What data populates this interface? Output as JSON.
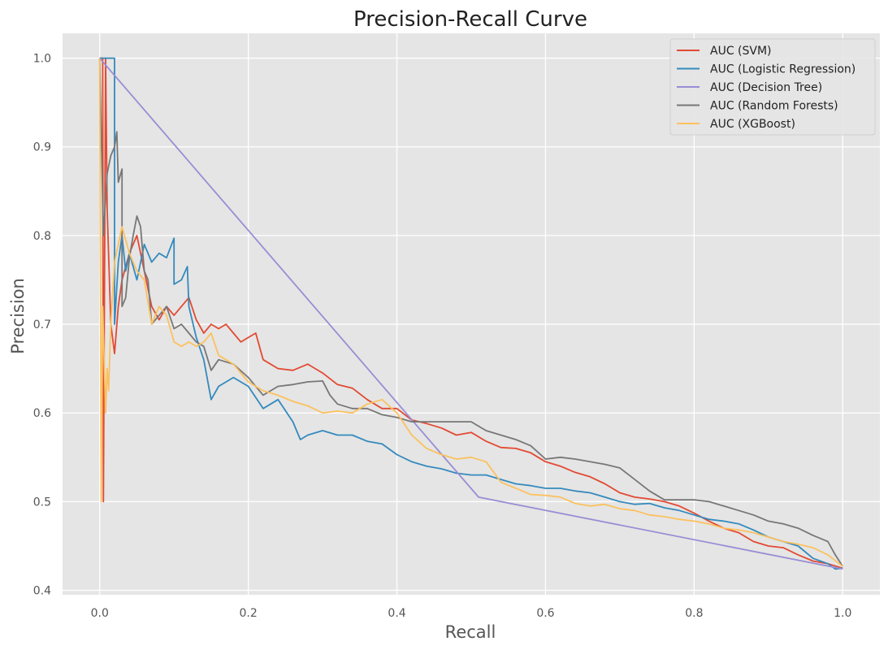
{
  "chart_data": {
    "type": "line",
    "title": "Precision-Recall Curve",
    "xlabel": "Recall",
    "ylabel": "Precision",
    "xlim": [
      -0.05,
      1.05
    ],
    "ylim": [
      0.395,
      1.028
    ],
    "xticks": [
      "0.0",
      "0.2",
      "0.4",
      "0.6",
      "0.8",
      "1.0"
    ],
    "yticks": [
      "0.4",
      "0.5",
      "0.6",
      "0.7",
      "0.8",
      "0.9",
      "1.0"
    ],
    "grid": true,
    "legend_position": "top-right",
    "series": [
      {
        "name": "AUC (SVM)",
        "color": "#E24A33",
        "points": [
          [
            0.0,
            1.0
          ],
          [
            0.004,
            1.0
          ],
          [
            0.005,
            0.5
          ],
          [
            0.008,
            1.0
          ],
          [
            0.01,
            0.83
          ],
          [
            0.015,
            0.7
          ],
          [
            0.02,
            0.667
          ],
          [
            0.025,
            0.72
          ],
          [
            0.03,
            0.75
          ],
          [
            0.04,
            0.78
          ],
          [
            0.05,
            0.8
          ],
          [
            0.06,
            0.76
          ],
          [
            0.07,
            0.72
          ],
          [
            0.08,
            0.705
          ],
          [
            0.09,
            0.72
          ],
          [
            0.1,
            0.71
          ],
          [
            0.11,
            0.72
          ],
          [
            0.12,
            0.73
          ],
          [
            0.13,
            0.705
          ],
          [
            0.14,
            0.69
          ],
          [
            0.15,
            0.7
          ],
          [
            0.16,
            0.695
          ],
          [
            0.17,
            0.7
          ],
          [
            0.18,
            0.69
          ],
          [
            0.19,
            0.68
          ],
          [
            0.2,
            0.685
          ],
          [
            0.21,
            0.69
          ],
          [
            0.22,
            0.66
          ],
          [
            0.24,
            0.65
          ],
          [
            0.26,
            0.648
          ],
          [
            0.28,
            0.655
          ],
          [
            0.3,
            0.645
          ],
          [
            0.32,
            0.632
          ],
          [
            0.34,
            0.628
          ],
          [
            0.36,
            0.615
          ],
          [
            0.38,
            0.605
          ],
          [
            0.4,
            0.605
          ],
          [
            0.42,
            0.592
          ],
          [
            0.44,
            0.588
          ],
          [
            0.46,
            0.583
          ],
          [
            0.48,
            0.575
          ],
          [
            0.5,
            0.578
          ],
          [
            0.52,
            0.568
          ],
          [
            0.54,
            0.561
          ],
          [
            0.56,
            0.56
          ],
          [
            0.58,
            0.555
          ],
          [
            0.6,
            0.545
          ],
          [
            0.62,
            0.54
          ],
          [
            0.64,
            0.533
          ],
          [
            0.66,
            0.528
          ],
          [
            0.68,
            0.52
          ],
          [
            0.7,
            0.51
          ],
          [
            0.72,
            0.505
          ],
          [
            0.74,
            0.503
          ],
          [
            0.76,
            0.5
          ],
          [
            0.78,
            0.495
          ],
          [
            0.8,
            0.487
          ],
          [
            0.82,
            0.478
          ],
          [
            0.84,
            0.47
          ],
          [
            0.86,
            0.465
          ],
          [
            0.88,
            0.455
          ],
          [
            0.9,
            0.45
          ],
          [
            0.92,
            0.448
          ],
          [
            0.94,
            0.44
          ],
          [
            0.96,
            0.433
          ],
          [
            0.98,
            0.43
          ],
          [
            1.0,
            0.425
          ]
        ]
      },
      {
        "name": "AUC (Logistic Regression)",
        "color": "#348ABD",
        "points": [
          [
            0.0,
            1.0
          ],
          [
            0.02,
            1.0
          ],
          [
            0.02,
            0.7
          ],
          [
            0.025,
            0.77
          ],
          [
            0.03,
            0.8
          ],
          [
            0.035,
            0.76
          ],
          [
            0.04,
            0.78
          ],
          [
            0.05,
            0.75
          ],
          [
            0.06,
            0.79
          ],
          [
            0.07,
            0.77
          ],
          [
            0.08,
            0.78
          ],
          [
            0.09,
            0.775
          ],
          [
            0.1,
            0.797
          ],
          [
            0.1,
            0.745
          ],
          [
            0.11,
            0.75
          ],
          [
            0.118,
            0.765
          ],
          [
            0.12,
            0.72
          ],
          [
            0.13,
            0.685
          ],
          [
            0.14,
            0.66
          ],
          [
            0.15,
            0.615
          ],
          [
            0.16,
            0.63
          ],
          [
            0.18,
            0.64
          ],
          [
            0.2,
            0.63
          ],
          [
            0.22,
            0.605
          ],
          [
            0.24,
            0.615
          ],
          [
            0.26,
            0.59
          ],
          [
            0.27,
            0.57
          ],
          [
            0.28,
            0.575
          ],
          [
            0.3,
            0.58
          ],
          [
            0.32,
            0.575
          ],
          [
            0.34,
            0.575
          ],
          [
            0.36,
            0.568
          ],
          [
            0.38,
            0.565
          ],
          [
            0.4,
            0.553
          ],
          [
            0.42,
            0.545
          ],
          [
            0.44,
            0.54
          ],
          [
            0.46,
            0.537
          ],
          [
            0.48,
            0.532
          ],
          [
            0.5,
            0.53
          ],
          [
            0.52,
            0.53
          ],
          [
            0.54,
            0.525
          ],
          [
            0.56,
            0.52
          ],
          [
            0.58,
            0.518
          ],
          [
            0.6,
            0.515
          ],
          [
            0.62,
            0.515
          ],
          [
            0.64,
            0.512
          ],
          [
            0.66,
            0.51
          ],
          [
            0.68,
            0.505
          ],
          [
            0.7,
            0.5
          ],
          [
            0.72,
            0.497
          ],
          [
            0.74,
            0.498
          ],
          [
            0.76,
            0.493
          ],
          [
            0.78,
            0.49
          ],
          [
            0.8,
            0.485
          ],
          [
            0.82,
            0.48
          ],
          [
            0.84,
            0.478
          ],
          [
            0.86,
            0.475
          ],
          [
            0.88,
            0.468
          ],
          [
            0.9,
            0.46
          ],
          [
            0.92,
            0.455
          ],
          [
            0.94,
            0.45
          ],
          [
            0.96,
            0.436
          ],
          [
            0.98,
            0.43
          ],
          [
            0.99,
            0.424
          ],
          [
            1.0,
            0.425
          ]
        ]
      },
      {
        "name": "AUC (Decision Tree)",
        "color": "#988ED5",
        "points": [
          [
            0.0,
            1.0
          ],
          [
            0.51,
            0.505
          ],
          [
            1.0,
            0.424
          ]
        ]
      },
      {
        "name": "AUC (Random Forests)",
        "color": "#777777",
        "points": [
          [
            0.0,
            1.0
          ],
          [
            0.005,
            0.8
          ],
          [
            0.01,
            0.87
          ],
          [
            0.015,
            0.89
          ],
          [
            0.02,
            0.9
          ],
          [
            0.023,
            0.917
          ],
          [
            0.025,
            0.86
          ],
          [
            0.03,
            0.875
          ],
          [
            0.03,
            0.72
          ],
          [
            0.035,
            0.73
          ],
          [
            0.04,
            0.775
          ],
          [
            0.045,
            0.8
          ],
          [
            0.05,
            0.822
          ],
          [
            0.055,
            0.81
          ],
          [
            0.06,
            0.76
          ],
          [
            0.065,
            0.75
          ],
          [
            0.07,
            0.7
          ],
          [
            0.08,
            0.71
          ],
          [
            0.09,
            0.72
          ],
          [
            0.1,
            0.695
          ],
          [
            0.11,
            0.7
          ],
          [
            0.12,
            0.69
          ],
          [
            0.13,
            0.68
          ],
          [
            0.14,
            0.675
          ],
          [
            0.15,
            0.648
          ],
          [
            0.16,
            0.66
          ],
          [
            0.18,
            0.655
          ],
          [
            0.2,
            0.64
          ],
          [
            0.22,
            0.62
          ],
          [
            0.24,
            0.63
          ],
          [
            0.26,
            0.632
          ],
          [
            0.28,
            0.635
          ],
          [
            0.3,
            0.636
          ],
          [
            0.31,
            0.62
          ],
          [
            0.32,
            0.61
          ],
          [
            0.34,
            0.605
          ],
          [
            0.36,
            0.605
          ],
          [
            0.38,
            0.598
          ],
          [
            0.4,
            0.595
          ],
          [
            0.42,
            0.59
          ],
          [
            0.46,
            0.59
          ],
          [
            0.5,
            0.59
          ],
          [
            0.52,
            0.58
          ],
          [
            0.54,
            0.575
          ],
          [
            0.56,
            0.57
          ],
          [
            0.58,
            0.563
          ],
          [
            0.6,
            0.548
          ],
          [
            0.62,
            0.55
          ],
          [
            0.64,
            0.548
          ],
          [
            0.66,
            0.545
          ],
          [
            0.68,
            0.542
          ],
          [
            0.7,
            0.538
          ],
          [
            0.72,
            0.525
          ],
          [
            0.74,
            0.512
          ],
          [
            0.76,
            0.502
          ],
          [
            0.78,
            0.502
          ],
          [
            0.8,
            0.502
          ],
          [
            0.82,
            0.5
          ],
          [
            0.84,
            0.495
          ],
          [
            0.86,
            0.49
          ],
          [
            0.88,
            0.485
          ],
          [
            0.9,
            0.478
          ],
          [
            0.92,
            0.475
          ],
          [
            0.94,
            0.47
          ],
          [
            0.96,
            0.462
          ],
          [
            0.98,
            0.455
          ],
          [
            0.99,
            0.44
          ],
          [
            1.0,
            0.427
          ]
        ]
      },
      {
        "name": "AUC (XGBoost)",
        "color": "#FBC15E",
        "points": [
          [
            0.0,
            1.0
          ],
          [
            0.002,
            0.5
          ],
          [
            0.004,
            0.72
          ],
          [
            0.008,
            0.6
          ],
          [
            0.01,
            0.65
          ],
          [
            0.012,
            0.625
          ],
          [
            0.015,
            0.7
          ],
          [
            0.02,
            0.77
          ],
          [
            0.03,
            0.81
          ],
          [
            0.04,
            0.78
          ],
          [
            0.05,
            0.76
          ],
          [
            0.06,
            0.75
          ],
          [
            0.07,
            0.7
          ],
          [
            0.08,
            0.72
          ],
          [
            0.09,
            0.71
          ],
          [
            0.1,
            0.68
          ],
          [
            0.11,
            0.675
          ],
          [
            0.12,
            0.68
          ],
          [
            0.13,
            0.675
          ],
          [
            0.14,
            0.68
          ],
          [
            0.15,
            0.69
          ],
          [
            0.16,
            0.665
          ],
          [
            0.18,
            0.655
          ],
          [
            0.2,
            0.635
          ],
          [
            0.22,
            0.625
          ],
          [
            0.24,
            0.62
          ],
          [
            0.26,
            0.613
          ],
          [
            0.28,
            0.608
          ],
          [
            0.3,
            0.6
          ],
          [
            0.32,
            0.602
          ],
          [
            0.34,
            0.6
          ],
          [
            0.36,
            0.61
          ],
          [
            0.38,
            0.615
          ],
          [
            0.4,
            0.6
          ],
          [
            0.42,
            0.575
          ],
          [
            0.44,
            0.56
          ],
          [
            0.46,
            0.553
          ],
          [
            0.48,
            0.548
          ],
          [
            0.5,
            0.55
          ],
          [
            0.52,
            0.545
          ],
          [
            0.54,
            0.522
          ],
          [
            0.56,
            0.515
          ],
          [
            0.58,
            0.508
          ],
          [
            0.6,
            0.507
          ],
          [
            0.62,
            0.505
          ],
          [
            0.64,
            0.498
          ],
          [
            0.66,
            0.495
          ],
          [
            0.68,
            0.497
          ],
          [
            0.7,
            0.492
          ],
          [
            0.72,
            0.49
          ],
          [
            0.74,
            0.485
          ],
          [
            0.76,
            0.483
          ],
          [
            0.78,
            0.48
          ],
          [
            0.8,
            0.478
          ],
          [
            0.82,
            0.475
          ],
          [
            0.84,
            0.47
          ],
          [
            0.86,
            0.468
          ],
          [
            0.88,
            0.465
          ],
          [
            0.9,
            0.46
          ],
          [
            0.92,
            0.455
          ],
          [
            0.94,
            0.452
          ],
          [
            0.96,
            0.448
          ],
          [
            0.98,
            0.44
          ],
          [
            1.0,
            0.427
          ]
        ]
      }
    ]
  }
}
